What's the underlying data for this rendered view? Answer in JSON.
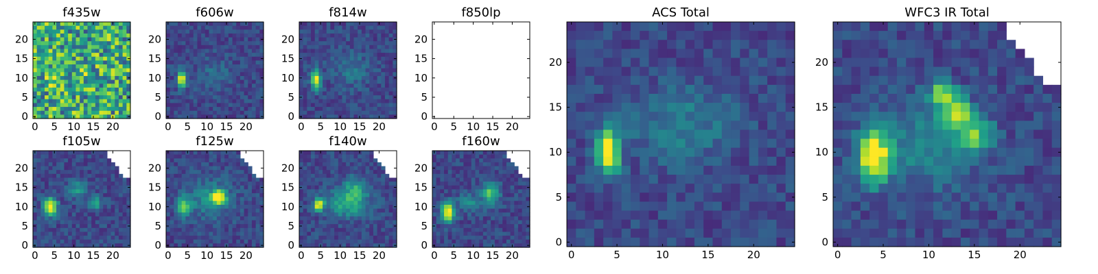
{
  "chart_data": [
    {
      "type": "heatmap",
      "title": "f435w",
      "x_ticks": [
        "0",
        "5",
        "10",
        "15",
        "20"
      ],
      "y_ticks": [
        "0",
        "5",
        "10",
        "15",
        "20"
      ],
      "xlim": [
        0,
        24
      ],
      "ylim": [
        0,
        24
      ],
      "grid": false,
      "colormap": "viridis",
      "content": "noise",
      "blobs": []
    },
    {
      "type": "heatmap",
      "title": "f606w",
      "x_ticks": [
        "0",
        "5",
        "10",
        "15",
        "20"
      ],
      "y_ticks": [
        "0",
        "5",
        "10",
        "15",
        "20"
      ],
      "xlim": [
        0,
        24
      ],
      "ylim": [
        0,
        24
      ],
      "grid": false,
      "colormap": "viridis",
      "content": "source",
      "blobs": [
        {
          "x": 3.5,
          "y": 9.5,
          "sx": 0.7,
          "sy": 1.6,
          "peak": 1.0
        },
        {
          "x": 12,
          "y": 11,
          "sx": 3,
          "sy": 3,
          "peak": 0.15
        }
      ]
    },
    {
      "type": "heatmap",
      "title": "f814w",
      "x_ticks": [
        "0",
        "5",
        "10",
        "15",
        "20"
      ],
      "y_ticks": [
        "0",
        "5",
        "10",
        "15",
        "20"
      ],
      "xlim": [
        0,
        24
      ],
      "ylim": [
        0,
        24
      ],
      "grid": false,
      "colormap": "viridis",
      "content": "source",
      "blobs": [
        {
          "x": 3.8,
          "y": 9.5,
          "sx": 0.8,
          "sy": 1.7,
          "peak": 1.0
        },
        {
          "x": 13,
          "y": 12,
          "sx": 3.5,
          "sy": 3,
          "peak": 0.2
        }
      ]
    },
    {
      "type": "heatmap",
      "title": "f850lp",
      "x_ticks": [
        "0",
        "5",
        "10",
        "15",
        "20"
      ],
      "y_ticks": [
        "0",
        "5",
        "10",
        "15",
        "20"
      ],
      "xlim": [
        0,
        24
      ],
      "ylim": [
        0,
        24
      ],
      "grid": false,
      "colormap": "viridis",
      "content": "empty",
      "blobs": []
    },
    {
      "type": "heatmap",
      "title": "f105w",
      "x_ticks": [
        "0",
        "5",
        "10",
        "15",
        "20"
      ],
      "y_ticks": [
        "0",
        "5",
        "10",
        "15",
        "20"
      ],
      "xlim": [
        0,
        24
      ],
      "ylim": [
        0,
        24
      ],
      "grid": false,
      "colormap": "viridis",
      "content": "source",
      "blobs": [
        {
          "x": 4,
          "y": 10,
          "sx": 1.2,
          "sy": 1.6,
          "peak": 1.0
        },
        {
          "x": 11,
          "y": 14.5,
          "sx": 1.5,
          "sy": 1.5,
          "peak": 0.4
        },
        {
          "x": 15.5,
          "y": 11,
          "sx": 1.2,
          "sy": 1.2,
          "peak": 0.45
        }
      ]
    },
    {
      "type": "heatmap",
      "title": "f125w",
      "x_ticks": [
        "0",
        "5",
        "10",
        "15",
        "20"
      ],
      "y_ticks": [
        "0",
        "5",
        "10",
        "15",
        "20"
      ],
      "xlim": [
        0,
        24
      ],
      "ylim": [
        0,
        24
      ],
      "grid": false,
      "colormap": "viridis",
      "content": "source",
      "blobs": [
        {
          "x": 13,
          "y": 12.5,
          "sx": 1.2,
          "sy": 1.2,
          "peak": 1.0
        },
        {
          "x": 4,
          "y": 10,
          "sx": 1.3,
          "sy": 1.8,
          "peak": 0.6
        },
        {
          "x": 11,
          "y": 12,
          "sx": 4,
          "sy": 3.5,
          "peak": 0.3
        }
      ]
    },
    {
      "type": "heatmap",
      "title": "f140w",
      "x_ticks": [
        "0",
        "5",
        "10",
        "15",
        "20"
      ],
      "y_ticks": [
        "0",
        "5",
        "10",
        "15",
        "20"
      ],
      "xlim": [
        0,
        24
      ],
      "ylim": [
        0,
        24
      ],
      "grid": false,
      "colormap": "viridis",
      "content": "source",
      "blobs": [
        {
          "x": 4.5,
          "y": 10.5,
          "sx": 0.9,
          "sy": 1.2,
          "peak": 1.0
        },
        {
          "x": 12,
          "y": 11,
          "sx": 3.5,
          "sy": 2.5,
          "peak": 0.5
        },
        {
          "x": 14,
          "y": 15,
          "sx": 2,
          "sy": 2,
          "peak": 0.35
        }
      ]
    },
    {
      "type": "heatmap",
      "title": "f160w",
      "x_ticks": [
        "0",
        "5",
        "10",
        "15",
        "20"
      ],
      "y_ticks": [
        "0",
        "5",
        "10",
        "15",
        "20"
      ],
      "xlim": [
        0,
        24
      ],
      "ylim": [
        0,
        24
      ],
      "grid": false,
      "colormap": "viridis",
      "content": "source",
      "blobs": [
        {
          "x": 3.5,
          "y": 8.5,
          "sx": 1.2,
          "sy": 1.7,
          "peak": 1.0
        },
        {
          "x": 14.5,
          "y": 13.5,
          "sx": 1.5,
          "sy": 2,
          "peak": 0.6
        },
        {
          "x": 9,
          "y": 11,
          "sx": 2,
          "sy": 1.5,
          "peak": 0.35
        }
      ]
    },
    {
      "type": "heatmap",
      "title": "ACS Total",
      "x_ticks": [
        "0",
        "5",
        "10",
        "15",
        "20"
      ],
      "y_ticks": [
        "0",
        "5",
        "10",
        "15",
        "20"
      ],
      "xlim": [
        0,
        24
      ],
      "ylim": [
        0,
        24
      ],
      "grid": false,
      "colormap": "viridis",
      "content": "source",
      "blobs": [
        {
          "x": 4,
          "y": 10,
          "sx": 0.9,
          "sy": 1.7,
          "peak": 1.0
        },
        {
          "x": 12,
          "y": 13,
          "sx": 4,
          "sy": 3,
          "peak": 0.25
        }
      ]
    },
    {
      "type": "heatmap",
      "title": "WFC3 IR Total",
      "x_ticks": [
        "0",
        "5",
        "10",
        "15",
        "20"
      ],
      "y_ticks": [
        "0",
        "5",
        "10",
        "15",
        "20"
      ],
      "xlim": [
        0,
        24
      ],
      "ylim": [
        0,
        24
      ],
      "grid": false,
      "colormap": "viridis",
      "content": "source",
      "blobs": [
        {
          "x": 4,
          "y": 9.5,
          "sx": 1.2,
          "sy": 2.0,
          "peak": 1.0
        },
        {
          "x": 11.5,
          "y": 16.5,
          "sx": 0.9,
          "sy": 0.9,
          "peak": 0.75
        },
        {
          "x": 13,
          "y": 14.5,
          "sx": 1.1,
          "sy": 1.1,
          "peak": 0.65
        },
        {
          "x": 15,
          "y": 12,
          "sx": 1.3,
          "sy": 1.3,
          "peak": 0.55
        },
        {
          "x": 10,
          "y": 11,
          "sx": 4,
          "sy": 3.5,
          "peak": 0.3
        }
      ]
    }
  ],
  "colormap_stops": [
    "#440154",
    "#482878",
    "#3e4989",
    "#31688e",
    "#26828e",
    "#1f9e89",
    "#35b779",
    "#6ece58",
    "#b5de2b",
    "#fde725"
  ]
}
